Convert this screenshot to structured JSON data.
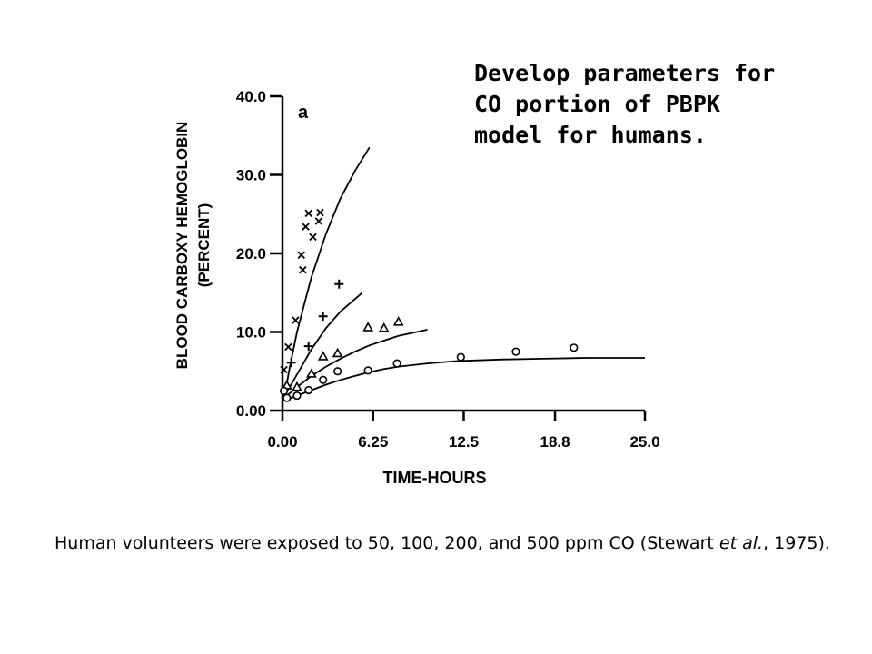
{
  "heading": {
    "lines": [
      "Develop parameters for",
      "CO portion of PBPK",
      "model for humans."
    ]
  },
  "caption": {
    "part1": "Human volunteers were exposed to 50, 100, 200, and 500 ppm CO (Stewart",
    "italic": "et al.",
    "part2": ", 1975)."
  },
  "chart_data": {
    "type": "scatter",
    "panel_label": "a",
    "xlabel": "TIME-HOURS",
    "ylabel": [
      "BLOOD CARBOXY HEMOGLOBIN",
      "(PERCENT)"
    ],
    "xlim": [
      0,
      25
    ],
    "ylim": [
      0,
      40
    ],
    "x_ticks": [
      0,
      6.25,
      12.5,
      18.8,
      25.0
    ],
    "x_tick_labels": [
      "0.00",
      "6.25",
      "12.5",
      "18.8",
      "25.0"
    ],
    "y_ticks": [
      0,
      10,
      20,
      30,
      40
    ],
    "y_tick_labels": [
      "0.00",
      "10.0",
      "20.0",
      "30.0",
      "40.0"
    ],
    "grid": false,
    "series": [
      {
        "marker": "x",
        "points": [
          [
            0.1,
            5.2
          ],
          [
            0.4,
            8.1
          ],
          [
            0.9,
            11.5
          ],
          [
            1.4,
            17.9
          ],
          [
            1.3,
            19.8
          ],
          [
            1.6,
            23.4
          ],
          [
            1.8,
            25.1
          ],
          [
            2.1,
            22.1
          ],
          [
            2.5,
            24.1
          ],
          [
            2.6,
            25.2
          ]
        ],
        "curve": [
          [
            0,
            1.5
          ],
          [
            0.25,
            3.0
          ],
          [
            0.5,
            5.5
          ],
          [
            1,
            10.0
          ],
          [
            1.5,
            13.5
          ],
          [
            2,
            17.0
          ],
          [
            3,
            22.5
          ],
          [
            4,
            27.0
          ],
          [
            5,
            30.5
          ],
          [
            6,
            33.5
          ]
        ]
      },
      {
        "marker": "+",
        "points": [
          [
            0.6,
            6.1
          ],
          [
            1.8,
            8.2
          ],
          [
            2.8,
            12.0
          ],
          [
            3.9,
            16.1
          ]
        ],
        "curve": [
          [
            0,
            1.5
          ],
          [
            0.5,
            3.0
          ],
          [
            1,
            4.6
          ],
          [
            2,
            7.8
          ],
          [
            3,
            10.5
          ],
          [
            4,
            12.6
          ],
          [
            5,
            14.2
          ],
          [
            5.5,
            15.0
          ]
        ]
      },
      {
        "marker": "triangle",
        "points": [
          [
            0.3,
            3.2
          ],
          [
            1.0,
            3.0
          ],
          [
            2.0,
            4.7
          ],
          [
            2.8,
            6.9
          ],
          [
            3.8,
            7.3
          ],
          [
            5.9,
            10.6
          ],
          [
            7.0,
            10.5
          ],
          [
            8.0,
            11.3
          ]
        ],
        "curve": [
          [
            0,
            1.5
          ],
          [
            0.5,
            2.2
          ],
          [
            1,
            3.0
          ],
          [
            2,
            4.4
          ],
          [
            3,
            5.6
          ],
          [
            4,
            6.6
          ],
          [
            5,
            7.5
          ],
          [
            6,
            8.3
          ],
          [
            7,
            8.9
          ],
          [
            8,
            9.5
          ],
          [
            9,
            9.9
          ],
          [
            10,
            10.3
          ]
        ]
      },
      {
        "marker": "circle",
        "points": [
          [
            0.1,
            2.5
          ],
          [
            0.3,
            1.6
          ],
          [
            1.0,
            1.9
          ],
          [
            1.8,
            2.6
          ],
          [
            2.8,
            3.9
          ],
          [
            3.8,
            5.0
          ],
          [
            5.9,
            5.1
          ],
          [
            7.9,
            6.0
          ],
          [
            12.3,
            6.8
          ],
          [
            16.1,
            7.5
          ],
          [
            20.1,
            8.0
          ]
        ],
        "curve": [
          [
            0,
            1.2
          ],
          [
            1,
            1.9
          ],
          [
            2,
            2.6
          ],
          [
            3,
            3.3
          ],
          [
            4,
            3.9
          ],
          [
            5,
            4.4
          ],
          [
            6,
            4.9
          ],
          [
            7,
            5.3
          ],
          [
            8,
            5.6
          ],
          [
            10,
            6.0
          ],
          [
            12,
            6.3
          ],
          [
            15,
            6.5
          ],
          [
            18,
            6.6
          ],
          [
            21,
            6.7
          ],
          [
            25,
            6.7
          ]
        ]
      }
    ]
  }
}
